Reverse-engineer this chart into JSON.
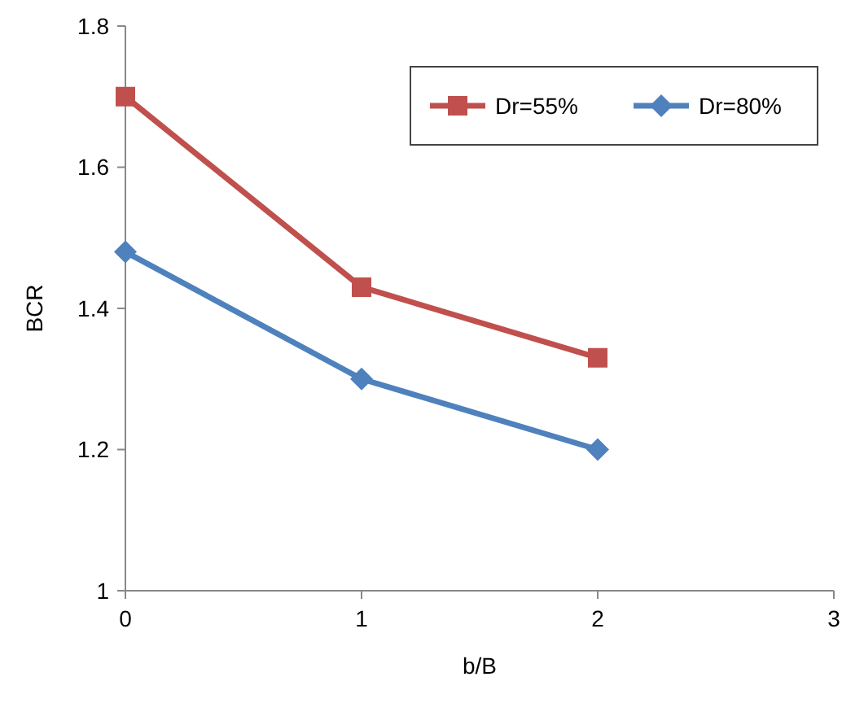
{
  "chart_data": {
    "type": "line",
    "xlabel": "b/B",
    "ylabel": "BCR",
    "x": [
      0,
      1,
      2
    ],
    "series": [
      {
        "name": "Dr=55%",
        "color": "#c0504d",
        "values": [
          1.7,
          1.43,
          1.33
        ],
        "marker": "square"
      },
      {
        "name": "Dr=80%",
        "color": "#4f81bd",
        "values": [
          1.48,
          1.3,
          1.2
        ],
        "marker": "diamond"
      }
    ],
    "xlim": [
      0,
      3
    ],
    "xticks": [
      0,
      1,
      2,
      3
    ],
    "ylim": [
      1,
      1.8
    ],
    "yticks": [
      1,
      1.2,
      1.4,
      1.6,
      1.8
    ],
    "legend": "top right",
    "grid": false
  }
}
